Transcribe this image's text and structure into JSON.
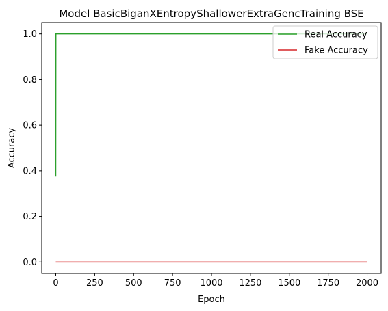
{
  "chart_data": {
    "type": "line",
    "title": "Model BasicBiganXEntropyShallowerExtraGencTraining BSE",
    "xlabel": "Epoch",
    "ylabel": "Accuracy",
    "xlim": [
      -90,
      2090
    ],
    "ylim": [
      -0.05,
      1.05
    ],
    "xticks": [
      0,
      250,
      500,
      750,
      1000,
      1250,
      1500,
      1750,
      2000
    ],
    "yticks": [
      0.0,
      0.2,
      0.4,
      0.6,
      0.8,
      1.0
    ],
    "xtick_labels": [
      "0",
      "250",
      "500",
      "750",
      "1000",
      "1250",
      "1500",
      "1750",
      "2000"
    ],
    "ytick_labels": [
      "0.0",
      "0.2",
      "0.4",
      "0.6",
      "0.8",
      "1.0"
    ],
    "legend_position": "top-right",
    "grid": false,
    "series": [
      {
        "name": "Real Accuracy",
        "color": "#2ca02c",
        "x": [
          0,
          1,
          2000
        ],
        "y": [
          0.375,
          1.0,
          1.0
        ]
      },
      {
        "name": "Fake Accuracy",
        "color": "#d62728",
        "x": [
          0,
          2000
        ],
        "y": [
          0.0,
          0.0
        ]
      }
    ]
  }
}
